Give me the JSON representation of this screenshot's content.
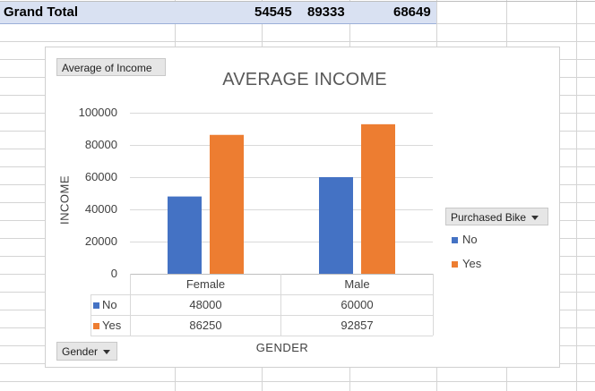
{
  "grand_total": {
    "label": "Grand Total",
    "values": [
      "54545",
      "89333",
      "68649"
    ]
  },
  "field_buttons": {
    "values_field": "Average of Income",
    "legend_field": "Purchased Bike",
    "axis_field": "Gender"
  },
  "chart_data": {
    "type": "bar",
    "title": "AVERAGE INCOME",
    "xlabel": "GENDER",
    "ylabel": "INCOME",
    "categories": [
      "Female",
      "Male"
    ],
    "series": [
      {
        "name": "No",
        "values": [
          48000,
          60000
        ],
        "color": "#4472c4"
      },
      {
        "name": "Yes",
        "values": [
          86250,
          92857
        ],
        "color": "#ed7d31"
      }
    ],
    "ylim": [
      0,
      100000
    ],
    "yticks": [
      "100000",
      "80000",
      "60000",
      "40000",
      "20000",
      "0"
    ],
    "grid": true,
    "legend_position": "right",
    "data_table": {
      "rows": [
        {
          "series": "No",
          "values": [
            "48000",
            "60000"
          ]
        },
        {
          "series": "Yes",
          "values": [
            "86250",
            "92857"
          ]
        }
      ]
    }
  }
}
